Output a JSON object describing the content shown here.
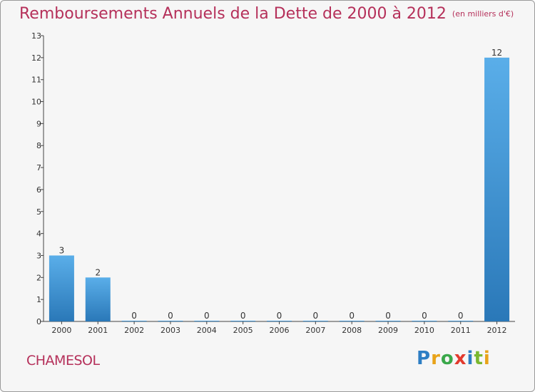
{
  "chart_data": {
    "type": "bar",
    "title": "Remboursements Annuels de la Dette de 2000 à 2012",
    "unit_label": "(en milliers d'€)",
    "categories": [
      "2000",
      "2001",
      "2002",
      "2003",
      "2004",
      "2005",
      "2006",
      "2007",
      "2008",
      "2009",
      "2010",
      "2011",
      "2012"
    ],
    "values": [
      3,
      2,
      0,
      0,
      0,
      0,
      0,
      0,
      0,
      0,
      0,
      0,
      12
    ],
    "ylim": [
      0,
      13
    ],
    "yticks": [
      0,
      1,
      2,
      3,
      4,
      5,
      6,
      7,
      8,
      9,
      10,
      11,
      12,
      13
    ],
    "xlabel": "",
    "ylabel": "",
    "grid": false,
    "bar_color_top": "#5aaee9",
    "bar_color_bottom": "#2a78b8"
  },
  "footer": {
    "commune": "CHAMESOL",
    "logo_letters": [
      "P",
      "r",
      "o",
      "x",
      "i",
      "t",
      "i"
    ],
    "logo_colors": [
      "#2d7ec4",
      "#e8a319",
      "#3aa84a",
      "#e23a2e",
      "#2d7ec4",
      "#7ab72f",
      "#e8a319"
    ]
  }
}
